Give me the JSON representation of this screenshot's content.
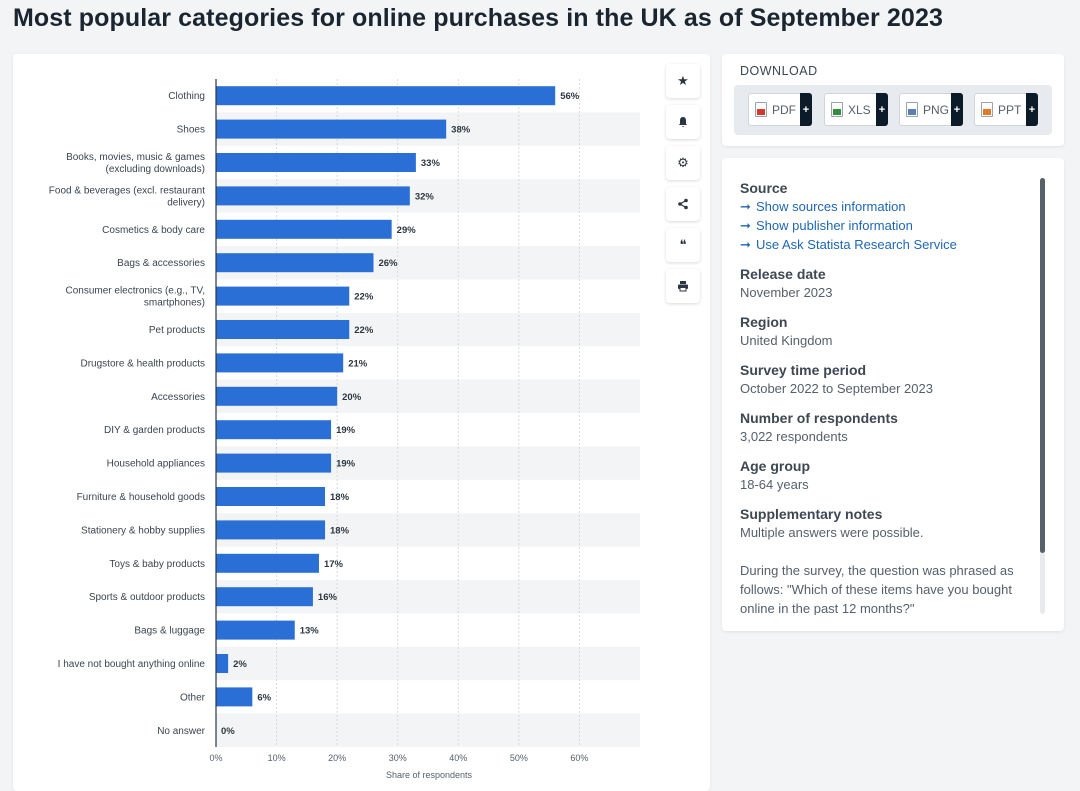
{
  "page": {
    "title": "Most popular categories for online purchases in the UK as of September 2023"
  },
  "toolbar": {
    "star_glyph": "★",
    "bell_glyph": "🔔",
    "gear_glyph": "⚙",
    "share_glyph": "⟨",
    "quote_glyph": "❝",
    "print_glyph": "⎙"
  },
  "download": {
    "title": "DOWNLOAD",
    "buttons": [
      {
        "label": "PDF",
        "plus": "+"
      },
      {
        "label": "XLS",
        "plus": "+"
      },
      {
        "label": "PNG",
        "plus": "+"
      },
      {
        "label": "PPT",
        "plus": "+"
      }
    ]
  },
  "info": {
    "source_heading": "Source",
    "links": [
      {
        "arrow": "➞",
        "label": "Show sources information"
      },
      {
        "arrow": "➞",
        "label": "Show publisher information"
      },
      {
        "arrow": "➞",
        "label": "Use Ask Statista Research Service"
      }
    ],
    "release_heading": "Release date",
    "release_value": "November 2023",
    "region_heading": "Region",
    "region_value": "United Kingdom",
    "period_heading": "Survey time period",
    "period_value": "October 2022 to September 2023",
    "respondents_heading": "Number of respondents",
    "respondents_value": "3,022 respondents",
    "age_heading": "Age group",
    "age_value": "18-64 years",
    "notes_heading": "Supplementary notes",
    "notes_value": "Multiple answers were possible.",
    "notes_extra": "During the survey, the question was phrased as follows: \"Which of these items have you bought online in the past 12 months?\""
  },
  "colors": {
    "bar": "#2a6fd6",
    "band": "#f3f4f5",
    "grid": "#d6dade",
    "axis": "#2b3640"
  },
  "chart_data": {
    "type": "bar",
    "orientation": "horizontal",
    "title": "Most popular categories for online purchases in the UK as of September 2023",
    "xlabel": "Share of respondents",
    "ylabel": "",
    "xlim": [
      0,
      70
    ],
    "ticks": [
      0,
      10,
      20,
      30,
      40,
      50,
      60
    ],
    "tick_labels": [
      "0%",
      "10%",
      "20%",
      "30%",
      "40%",
      "50%",
      "60%"
    ],
    "categories": [
      [
        "Clothing"
      ],
      [
        "Shoes"
      ],
      [
        "Books, movies, music & games",
        "(excluding downloads)"
      ],
      [
        "Food & beverages (excl. restaurant",
        "delivery)"
      ],
      [
        "Cosmetics & body care"
      ],
      [
        "Bags & accessories"
      ],
      [
        "Consumer electronics (e.g., TV,",
        "smartphones)"
      ],
      [
        "Pet products"
      ],
      [
        "Drugstore & health products"
      ],
      [
        "Accessories"
      ],
      [
        "DIY & garden products"
      ],
      [
        "Household appliances"
      ],
      [
        "Furniture & household goods"
      ],
      [
        "Stationery & hobby supplies"
      ],
      [
        "Toys & baby products"
      ],
      [
        "Sports & outdoor products"
      ],
      [
        "Bags & luggage"
      ],
      [
        "I have not bought anything online"
      ],
      [
        "Other"
      ],
      [
        "No answer"
      ]
    ],
    "values": [
      56,
      38,
      33,
      32,
      29,
      26,
      22,
      22,
      21,
      20,
      19,
      19,
      18,
      18,
      17,
      16,
      13,
      2,
      6,
      0
    ],
    "value_labels": [
      "56%",
      "38%",
      "33%",
      "32%",
      "29%",
      "26%",
      "22%",
      "22%",
      "21%",
      "20%",
      "19%",
      "19%",
      "18%",
      "18%",
      "17%",
      "16%",
      "13%",
      "2%",
      "6%",
      "0%"
    ]
  }
}
